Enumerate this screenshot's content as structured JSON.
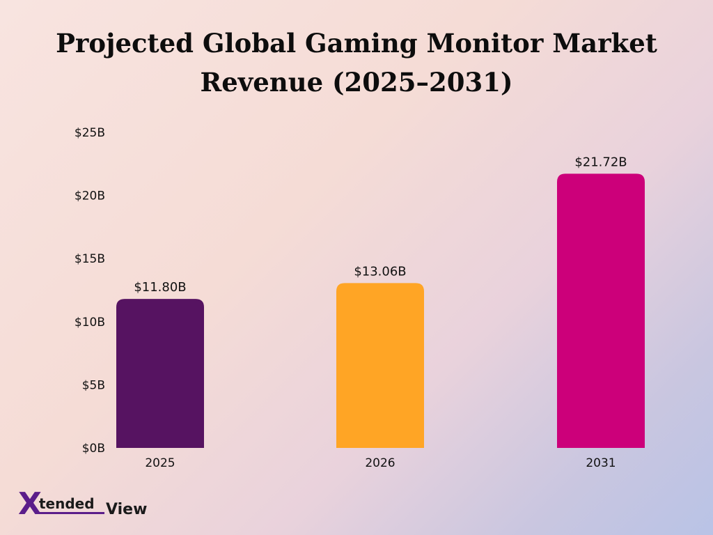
{
  "chart_data": {
    "type": "bar",
    "title_lines": [
      "Projected Global Gaming Monitor Market",
      "Revenue (2025–2031)"
    ],
    "categories": [
      "2025",
      "2026",
      "2031"
    ],
    "values": [
      11.8,
      13.06,
      21.72
    ],
    "data_labels": [
      "$11.80B",
      "$13.06B",
      "$21.72B"
    ],
    "colors": [
      "#561361",
      "#ffa525",
      "#cc007a"
    ],
    "yticks": [
      0,
      5,
      10,
      15,
      20,
      25
    ],
    "ytick_labels": [
      "$0B",
      "$5B",
      "$10B",
      "$15B",
      "$20B",
      "$25B"
    ],
    "ylim": [
      0,
      25
    ],
    "xlabel": "",
    "ylabel": "",
    "grid": false,
    "legend": "none"
  },
  "brand": {
    "mark": "X",
    "word1": "tended",
    "word2": "View"
  }
}
